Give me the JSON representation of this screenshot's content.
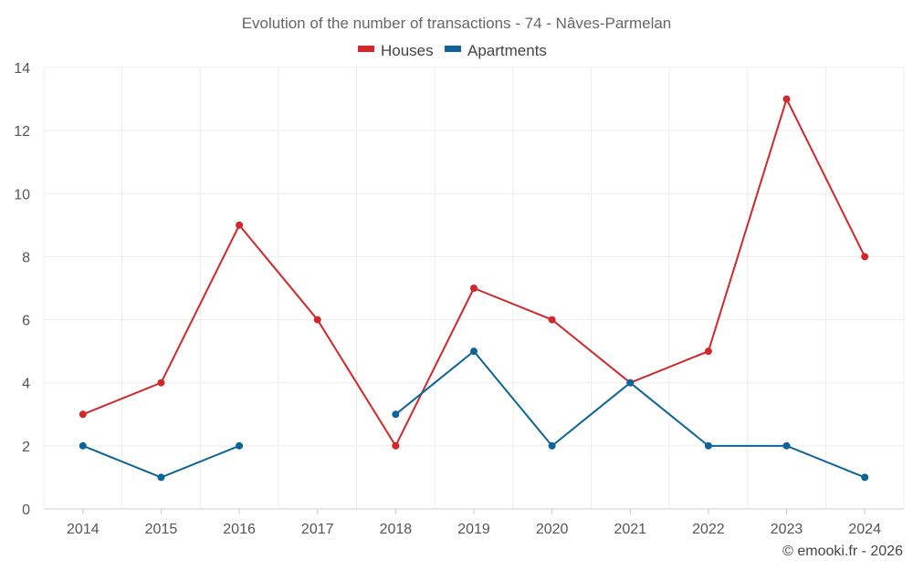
{
  "chart_data": {
    "type": "line",
    "title": "Evolution of the number of transactions - 74 - Nâves-Parmelan",
    "categories": [
      "2014",
      "2015",
      "2016",
      "2017",
      "2018",
      "2019",
      "2020",
      "2021",
      "2022",
      "2023",
      "2024"
    ],
    "series": [
      {
        "name": "Houses",
        "color": "#d0282b",
        "values": [
          3,
          4,
          9,
          6,
          2,
          7,
          6,
          4,
          5,
          13,
          8
        ]
      },
      {
        "name": "Apartments",
        "color": "#0e6496",
        "values": [
          2,
          1,
          2,
          null,
          3,
          5,
          2,
          4,
          2,
          2,
          1
        ]
      }
    ],
    "ylim": [
      0,
      14
    ],
    "yticks": [
      0,
      2,
      4,
      6,
      8,
      10,
      12,
      14
    ],
    "grid": true,
    "legend_position": "top-center"
  },
  "credit": "© emooki.fr - 2026"
}
